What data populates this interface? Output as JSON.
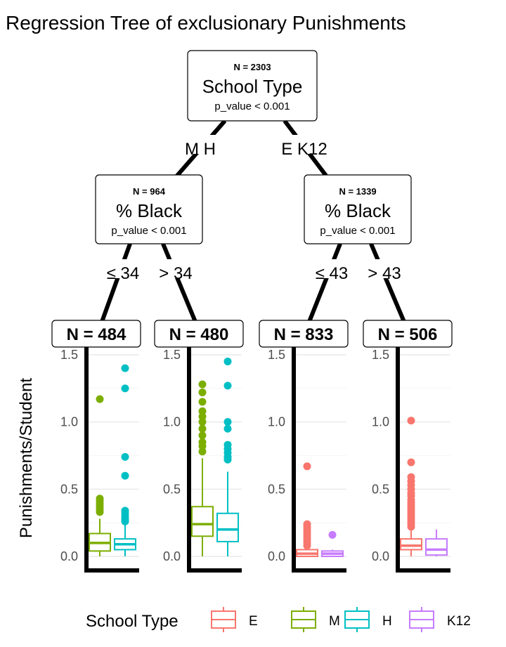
{
  "chart_data": {
    "type": "decision-tree-boxplot",
    "title": "Regression Tree of exclusionary Punishments",
    "ylabel": "Punishments/Student",
    "ylim": [
      0,
      1.5
    ],
    "yticks": [
      0.0,
      0.5,
      1.0,
      1.5
    ],
    "ytick_labels": [
      "0.0",
      "0.5",
      "1.0",
      "1.5"
    ],
    "root": {
      "n_label": "N =  2303",
      "variable": "School Type",
      "p_label": "p_value < 0.001",
      "edges": [
        "M H",
        "E K12"
      ]
    },
    "inner_nodes": [
      {
        "n_label": "N =  964",
        "variable": "% Black",
        "p_label": "p_value < 0.001",
        "edges": [
          "≤  34",
          ">  34"
        ]
      },
      {
        "n_label": "N =  1339",
        "variable": "% Black",
        "p_label": "p_value < 0.001",
        "edges": [
          "≤  43",
          ">  43"
        ]
      }
    ],
    "leaves": [
      {
        "n_label": "N = 484",
        "boxes": [
          {
            "group": "M",
            "q1": 0.04,
            "median": 0.1,
            "q3": 0.17,
            "whisker_low": 0.0,
            "whisker_high": 0.28,
            "outliers": [
              1.17,
              0.43,
              0.41,
              0.39,
              0.37,
              0.35,
              0.33
            ]
          },
          {
            "group": "H",
            "q1": 0.05,
            "median": 0.09,
            "q3": 0.13,
            "whisker_low": 0.0,
            "whisker_high": 0.25,
            "outliers": [
              1.4,
              1.25,
              0.74,
              0.6,
              0.34,
              0.32,
              0.3,
              0.28,
              0.27,
              0.26
            ]
          }
        ]
      },
      {
        "n_label": "N = 480",
        "boxes": [
          {
            "group": "M",
            "q1": 0.15,
            "median": 0.24,
            "q3": 0.37,
            "whisker_low": 0.0,
            "whisker_high": 0.73,
            "outliers": [
              1.28,
              1.22,
              1.15,
              1.08,
              1.04,
              1.0,
              0.95,
              0.9,
              0.85,
              0.82,
              0.78
            ]
          },
          {
            "group": "H",
            "q1": 0.11,
            "median": 0.2,
            "q3": 0.32,
            "whisker_low": 0.0,
            "whisker_high": 0.63,
            "outliers": [
              1.45,
              1.27,
              1.0,
              0.95,
              0.83,
              0.8,
              0.77,
              0.74,
              0.72
            ]
          }
        ]
      },
      {
        "n_label": "N = 833",
        "boxes": [
          {
            "group": "E",
            "q1": 0.0,
            "median": 0.02,
            "q3": 0.05,
            "whisker_low": 0.0,
            "whisker_high": 0.06,
            "outliers": [
              0.67,
              0.24,
              0.22,
              0.2,
              0.18,
              0.16,
              0.14,
              0.12,
              0.1,
              0.08
            ]
          },
          {
            "group": "K12",
            "q1": 0.0,
            "median": 0.02,
            "q3": 0.04,
            "whisker_low": 0.0,
            "whisker_high": 0.05,
            "outliers": [
              0.16
            ]
          }
        ]
      },
      {
        "n_label": "N = 506",
        "boxes": [
          {
            "group": "E",
            "q1": 0.05,
            "median": 0.08,
            "q3": 0.13,
            "whisker_low": 0.0,
            "whisker_high": 0.21,
            "outliers": [
              1.01,
              0.7,
              0.59,
              0.56,
              0.53,
              0.5,
              0.47,
              0.45,
              0.42,
              0.4,
              0.38,
              0.36,
              0.34,
              0.32,
              0.3,
              0.28,
              0.26,
              0.24,
              0.22
            ]
          },
          {
            "group": "K12",
            "q1": 0.01,
            "median": 0.05,
            "q3": 0.13,
            "whisker_low": 0.0,
            "whisker_high": 0.2,
            "outliers": []
          }
        ]
      }
    ],
    "legend": {
      "title": "School Type",
      "placement": "bottom",
      "items": [
        {
          "label": "E",
          "color": "#F8766D"
        },
        {
          "label": "M",
          "color": "#7CAE00"
        },
        {
          "label": "H",
          "color": "#00BFC4"
        },
        {
          "label": "K12",
          "color": "#C77CFF"
        }
      ]
    },
    "grid": true
  }
}
